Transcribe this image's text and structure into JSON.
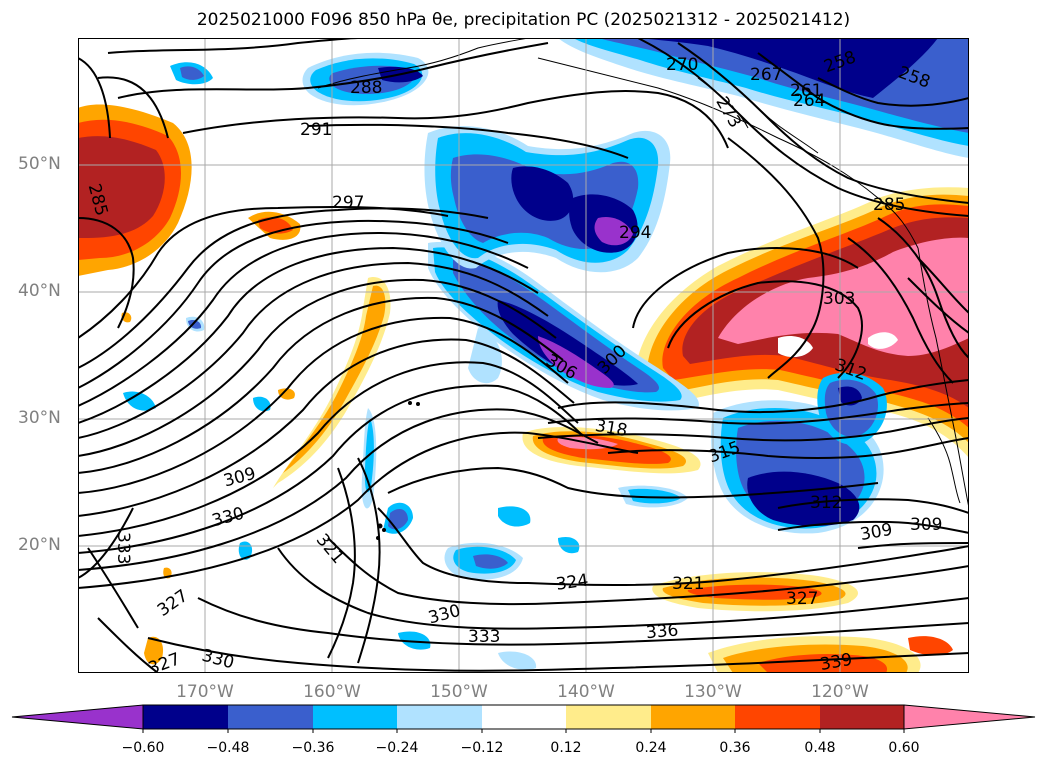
{
  "title": "2025021000 F096 850 hPa θe, precipitation PC (2025021312 - 2025021412)",
  "map": {
    "lat_labels": [
      "50°N",
      "40°N",
      "30°N",
      "20°N"
    ],
    "lon_labels": [
      "170°W",
      "160°W",
      "150°W",
      "140°W",
      "130°W",
      "120°W"
    ],
    "contour_labels": [
      "258",
      "258",
      "261",
      "264",
      "267",
      "270",
      "273",
      "285",
      "285",
      "288",
      "291",
      "294",
      "297",
      "300",
      "303",
      "306",
      "309",
      "309",
      "309",
      "312",
      "312",
      "315",
      "318",
      "321",
      "321",
      "324",
      "327",
      "327",
      "327",
      "330",
      "330",
      "330",
      "333",
      "333",
      "336",
      "339"
    ]
  },
  "colorbar": {
    "tick_labels": [
      "−0.60",
      "−0.48",
      "−0.36",
      "−0.24",
      "−0.12",
      "0.12",
      "0.24",
      "0.36",
      "0.48",
      "0.60"
    ],
    "colors": [
      "#9932CC",
      "#00008B",
      "#3A5FCD",
      "#00BFFF",
      "#B0E2FF",
      "#FFFFFF",
      "#FFEC8B",
      "#FFA500",
      "#FF4500",
      "#B22222",
      "#FF82AB"
    ]
  },
  "colors": {
    "grid": "#A9A9A9",
    "axis_label": "#808080"
  }
}
